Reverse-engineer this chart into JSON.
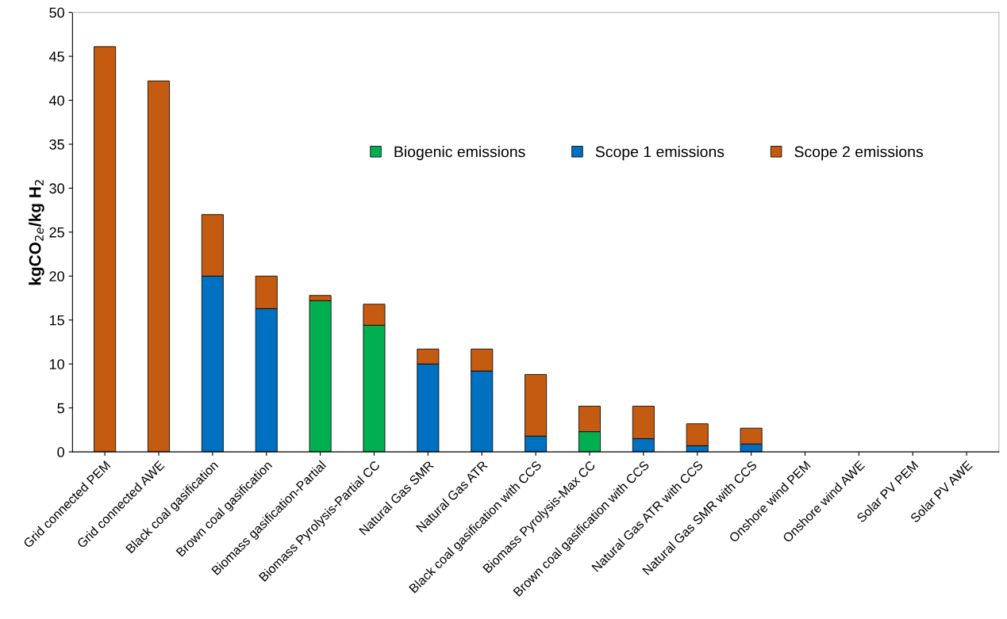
{
  "chart_data": {
    "type": "bar",
    "stacked": true,
    "ylabel": "kgCO$_{2e}$/kg H$_{2}$",
    "categories": [
      "Grid connected PEM",
      "Grid connected AWE",
      "Black coal gasification",
      "Brown coal gasification",
      "Biomass gasification-Partial",
      "Biomass Pyrolysis-Partial CC",
      "Natural Gas SMR",
      "Natural Gas ATR",
      "Black coal gasification with CCS",
      "Biomass Pyrolysis-Max CC",
      "Brown coal gasification with CCS",
      "Natural Gas ATR with CCS",
      "Natural Gas SMR with CCS",
      "Onshore wind PEM",
      "Onshore wind AWE",
      "Solar PV PEM",
      "Solar PV AWE"
    ],
    "series": [
      {
        "name": "Biogenic emissions",
        "color": "#00b050",
        "values": [
          null,
          null,
          null,
          null,
          17.2,
          14.4,
          null,
          null,
          null,
          2.3,
          null,
          null,
          null,
          null,
          null,
          null,
          null
        ]
      },
      {
        "name": "Scope 1 emissions",
        "color": "#0070c0",
        "values": [
          null,
          null,
          20.0,
          16.3,
          null,
          null,
          10.0,
          9.2,
          1.8,
          null,
          1.5,
          0.7,
          0.9,
          null,
          null,
          null,
          null
        ]
      },
      {
        "name": "Scope 2 emissions",
        "color": "#c55a11",
        "values": [
          46.1,
          42.2,
          7.0,
          3.7,
          0.6,
          2.4,
          1.7,
          2.5,
          7.0,
          2.9,
          3.7,
          2.5,
          1.8,
          null,
          null,
          null,
          null
        ]
      }
    ],
    "ylim": [
      0,
      50
    ],
    "yticks": [
      0,
      5,
      10,
      15,
      20,
      25,
      30,
      35,
      40,
      45,
      50
    ],
    "grid": false,
    "legend": "top right"
  }
}
